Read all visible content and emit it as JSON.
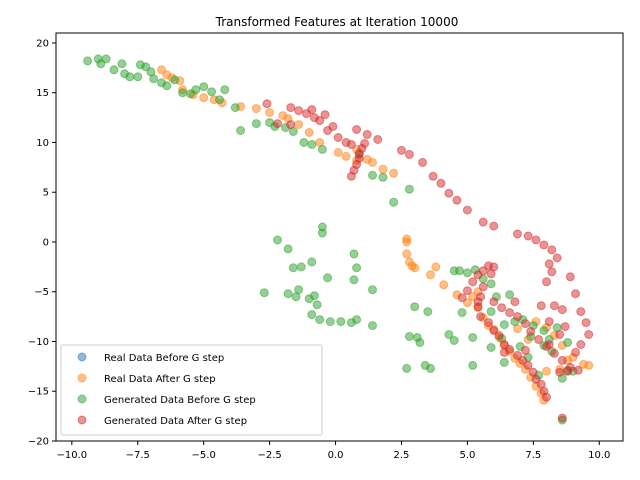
{
  "chart_data": {
    "type": "scatter",
    "title": "Transformed Features at Iteration 10000",
    "xlabel": "",
    "ylabel": "",
    "xlim": [
      -10.6,
      10.9
    ],
    "ylim": [
      -20,
      21
    ],
    "xticks": [
      -10.0,
      -7.5,
      -5.0,
      -2.5,
      0.0,
      2.5,
      5.0,
      7.5,
      10.0
    ],
    "xtick_labels": [
      "−10.0",
      "−7.5",
      "−5.0",
      "−2.5",
      "0.0",
      "2.5",
      "5.0",
      "7.5",
      "10.0"
    ],
    "yticks": [
      -20,
      -15,
      -10,
      -5,
      0,
      5,
      10,
      15,
      20
    ],
    "ytick_labels": [
      "−20",
      "−15",
      "−10",
      "−5",
      "0",
      "5",
      "10",
      "15",
      "20"
    ],
    "grid": false,
    "legend_position": "lower-left",
    "series": [
      {
        "name": "Real Data Before G step",
        "color": "#1f77b4",
        "points": []
      },
      {
        "name": "Real Data After G step",
        "color": "#ff7f0e",
        "points": [
          [
            -6.6,
            17.3
          ],
          [
            -6.4,
            16.8
          ],
          [
            -6.2,
            16.5
          ],
          [
            -5.9,
            16.2
          ],
          [
            -5.8,
            15.3
          ],
          [
            -5.4,
            14.8
          ],
          [
            -5.0,
            14.5
          ],
          [
            -4.6,
            14.3
          ],
          [
            -4.3,
            14.0
          ],
          [
            -3.6,
            13.6
          ],
          [
            -3.0,
            13.4
          ],
          [
            -2.5,
            13.0
          ],
          [
            -2.0,
            12.7
          ],
          [
            -1.8,
            12.4
          ],
          [
            -1.4,
            11.8
          ],
          [
            -1.0,
            11.0
          ],
          [
            -0.6,
            10.0
          ],
          [
            0.1,
            9.0
          ],
          [
            0.4,
            8.6
          ],
          [
            0.8,
            9.3
          ],
          [
            0.8,
            8.2
          ],
          [
            1.2,
            8.3
          ],
          [
            1.4,
            8.0
          ],
          [
            1.8,
            7.3
          ],
          [
            2.2,
            6.9
          ],
          [
            2.7,
            0.3
          ],
          [
            2.7,
            0.0
          ],
          [
            2.7,
            -1.2
          ],
          [
            2.8,
            -2.0
          ],
          [
            3.0,
            -2.6
          ],
          [
            3.6,
            -3.3
          ],
          [
            4.1,
            -4.3
          ],
          [
            4.6,
            -5.3
          ],
          [
            5.0,
            -6.1
          ],
          [
            5.4,
            -6.6
          ],
          [
            5.6,
            -7.6
          ],
          [
            5.8,
            -8.4
          ],
          [
            6.0,
            -8.8
          ],
          [
            6.2,
            -9.6
          ],
          [
            6.4,
            -10.4
          ],
          [
            6.6,
            -11.0
          ],
          [
            6.8,
            -11.7
          ],
          [
            7.0,
            -12.2
          ],
          [
            7.2,
            -12.8
          ],
          [
            7.4,
            -13.6
          ],
          [
            7.6,
            -14.5
          ],
          [
            7.8,
            -15.2
          ],
          [
            7.9,
            -15.9
          ],
          [
            7.6,
            -8.0
          ],
          [
            8.0,
            -8.6
          ],
          [
            8.3,
            -9.4
          ],
          [
            8.6,
            -10.4
          ],
          [
            9.0,
            -11.6
          ],
          [
            9.4,
            -12.3
          ],
          [
            9.6,
            -12.4
          ],
          [
            8.5,
            -12.8
          ],
          [
            8.0,
            -13.0
          ],
          [
            8.8,
            -11.9
          ],
          [
            7.3,
            -9.8
          ],
          [
            6.9,
            -8.7
          ],
          [
            5.2,
            -5.5
          ],
          [
            5.4,
            -5.0
          ],
          [
            3.8,
            -2.5
          ],
          [
            2.9,
            -2.4
          ]
        ]
      },
      {
        "name": "Generated Data Before G step",
        "color": "#2ca02c",
        "points": [
          [
            -9.4,
            18.2
          ],
          [
            -9.0,
            18.4
          ],
          [
            -8.9,
            17.9
          ],
          [
            -8.7,
            18.4
          ],
          [
            -8.4,
            17.3
          ],
          [
            -8.1,
            17.9
          ],
          [
            -8.0,
            16.9
          ],
          [
            -7.8,
            16.6
          ],
          [
            -7.5,
            16.6
          ],
          [
            -7.4,
            17.8
          ],
          [
            -7.2,
            17.6
          ],
          [
            -7.0,
            17.1
          ],
          [
            -6.9,
            16.4
          ],
          [
            -6.6,
            16.0
          ],
          [
            -6.4,
            15.7
          ],
          [
            -6.1,
            16.3
          ],
          [
            -5.8,
            15.0
          ],
          [
            -5.5,
            14.9
          ],
          [
            -5.3,
            15.3
          ],
          [
            -5.0,
            15.6
          ],
          [
            -4.7,
            15.1
          ],
          [
            -4.4,
            14.3
          ],
          [
            -4.2,
            15.3
          ],
          [
            -3.8,
            13.5
          ],
          [
            -3.6,
            11.2
          ],
          [
            -3.0,
            11.9
          ],
          [
            -2.5,
            12.0
          ],
          [
            -2.3,
            11.6
          ],
          [
            -1.9,
            11.5
          ],
          [
            -1.6,
            11.1
          ],
          [
            -1.2,
            10.0
          ],
          [
            -0.9,
            9.8
          ],
          [
            -0.5,
            9.3
          ],
          [
            0.9,
            8.8
          ],
          [
            1.4,
            6.7
          ],
          [
            1.8,
            6.5
          ],
          [
            2.2,
            4.0
          ],
          [
            2.8,
            5.3
          ],
          [
            -2.2,
            0.2
          ],
          [
            -1.8,
            -0.7
          ],
          [
            -1.6,
            -2.6
          ],
          [
            -1.3,
            -2.5
          ],
          [
            -0.9,
            -2.0
          ],
          [
            -0.5,
            1.5
          ],
          [
            -0.5,
            0.9
          ],
          [
            -0.3,
            -3.6
          ],
          [
            0.7,
            -1.2
          ],
          [
            0.8,
            -2.6
          ],
          [
            0.7,
            -3.8
          ],
          [
            -2.7,
            -5.1
          ],
          [
            -1.8,
            -5.2
          ],
          [
            -1.5,
            -5.5
          ],
          [
            -1.4,
            -4.8
          ],
          [
            -1.0,
            -5.7
          ],
          [
            -0.8,
            -5.4
          ],
          [
            -0.7,
            -6.3
          ],
          [
            -0.9,
            -7.3
          ],
          [
            -0.6,
            -7.8
          ],
          [
            -0.2,
            -8.0
          ],
          [
            0.2,
            -8.0
          ],
          [
            0.6,
            -8.1
          ],
          [
            0.8,
            -7.8
          ],
          [
            1.4,
            -8.4
          ],
          [
            1.4,
            -4.8
          ],
          [
            3.0,
            -6.5
          ],
          [
            3.5,
            -7.0
          ],
          [
            2.8,
            -9.5
          ],
          [
            3.1,
            -9.6
          ],
          [
            3.2,
            -10.1
          ],
          [
            3.4,
            -12.4
          ],
          [
            2.7,
            -12.7
          ],
          [
            3.6,
            -12.7
          ],
          [
            4.3,
            -9.3
          ],
          [
            4.5,
            -9.9
          ],
          [
            4.8,
            -7.1
          ],
          [
            5.2,
            -9.6
          ],
          [
            5.2,
            -12.4
          ],
          [
            4.7,
            -2.9
          ],
          [
            5.0,
            -3.1
          ],
          [
            4.5,
            -2.9
          ],
          [
            5.3,
            -2.8
          ],
          [
            5.6,
            -3.7
          ],
          [
            5.9,
            -4.2
          ],
          [
            6.1,
            -5.5
          ],
          [
            6.6,
            -5.3
          ],
          [
            5.9,
            -7.0
          ],
          [
            6.4,
            -8.3
          ],
          [
            6.8,
            -8.0
          ],
          [
            7.1,
            -7.8
          ],
          [
            7.5,
            -8.4
          ],
          [
            7.9,
            -8.9
          ],
          [
            8.1,
            -9.8
          ],
          [
            8.4,
            -8.6
          ],
          [
            8.8,
            -10.1
          ],
          [
            7.4,
            -9.5
          ],
          [
            7.9,
            -10.4
          ],
          [
            8.2,
            -11.0
          ],
          [
            7.3,
            -11.6
          ],
          [
            8.6,
            -13.7
          ],
          [
            7.7,
            -13.4
          ],
          [
            8.6,
            -17.9
          ],
          [
            8.8,
            -12.9
          ],
          [
            9.0,
            -13.0
          ],
          [
            7.0,
            -10.5
          ],
          [
            6.3,
            -9.7
          ],
          [
            5.9,
            -10.6
          ],
          [
            6.4,
            -12.1
          ]
        ]
      },
      {
        "name": "Generated Data After G step",
        "color": "#d62728",
        "points": [
          [
            -2.6,
            13.9
          ],
          [
            -1.7,
            13.5
          ],
          [
            -1.4,
            13.2
          ],
          [
            -1.1,
            12.9
          ],
          [
            -0.9,
            13.3
          ],
          [
            -0.8,
            12.5
          ],
          [
            -0.6,
            12.2
          ],
          [
            -0.4,
            12.8
          ],
          [
            -1.7,
            11.8
          ],
          [
            -2.2,
            11.9
          ],
          [
            -0.1,
            11.6
          ],
          [
            -0.3,
            11.2
          ],
          [
            0.1,
            10.5
          ],
          [
            0.4,
            10.0
          ],
          [
            0.6,
            9.8
          ],
          [
            0.8,
            11.3
          ],
          [
            1.2,
            10.8
          ],
          [
            1.6,
            10.3
          ],
          [
            0.6,
            6.6
          ],
          [
            0.7,
            7.2
          ],
          [
            0.8,
            7.8
          ],
          [
            0.9,
            8.4
          ],
          [
            1.0,
            9.4
          ],
          [
            1.1,
            9.9
          ],
          [
            0.9,
            8.9
          ],
          [
            2.5,
            9.2
          ],
          [
            2.8,
            8.8
          ],
          [
            3.3,
            8.0
          ],
          [
            3.7,
            6.6
          ],
          [
            4.0,
            5.9
          ],
          [
            4.3,
            4.9
          ],
          [
            4.6,
            4.2
          ],
          [
            5.0,
            3.2
          ],
          [
            5.6,
            2.0
          ],
          [
            6.0,
            1.6
          ],
          [
            6.9,
            0.8
          ],
          [
            7.3,
            0.6
          ],
          [
            7.6,
            0.2
          ],
          [
            7.9,
            -0.3
          ],
          [
            8.2,
            -0.8
          ],
          [
            8.4,
            -1.6
          ],
          [
            8.1,
            -2.2
          ],
          [
            8.2,
            -3.0
          ],
          [
            8.0,
            -4.0
          ],
          [
            8.9,
            -3.5
          ],
          [
            9.1,
            -5.2
          ],
          [
            8.6,
            -6.8
          ],
          [
            9.3,
            -7.0
          ],
          [
            9.5,
            -8.1
          ],
          [
            9.6,
            -9.3
          ],
          [
            9.3,
            -10.3
          ],
          [
            9.1,
            -11.1
          ],
          [
            4.8,
            -5.6
          ],
          [
            5.0,
            -4.9
          ],
          [
            5.2,
            -4.0
          ],
          [
            5.4,
            -3.3
          ],
          [
            5.6,
            -2.9
          ],
          [
            5.8,
            -2.4
          ],
          [
            6.0,
            -2.5
          ],
          [
            5.9,
            -3.2
          ],
          [
            5.6,
            -4.5
          ],
          [
            5.5,
            -5.5
          ],
          [
            5.4,
            -6.5
          ],
          [
            5.5,
            -7.5
          ],
          [
            5.8,
            -8.1
          ],
          [
            6.0,
            -8.9
          ],
          [
            6.2,
            -9.4
          ],
          [
            6.4,
            -10.3
          ],
          [
            6.6,
            -10.8
          ],
          [
            6.9,
            -11.4
          ],
          [
            7.1,
            -11.9
          ],
          [
            7.3,
            -12.4
          ],
          [
            7.5,
            -13.1
          ],
          [
            7.6,
            -13.8
          ],
          [
            7.8,
            -14.3
          ],
          [
            7.9,
            -15.0
          ],
          [
            8.0,
            -15.6
          ],
          [
            6.0,
            -6.0
          ],
          [
            6.3,
            -6.6
          ],
          [
            6.6,
            -7.1
          ],
          [
            6.9,
            -7.5
          ],
          [
            7.2,
            -8.2
          ],
          [
            7.4,
            -9.0
          ],
          [
            7.7,
            -9.8
          ],
          [
            8.0,
            -10.5
          ],
          [
            8.3,
            -11.2
          ],
          [
            8.6,
            -11.9
          ],
          [
            8.9,
            -12.6
          ],
          [
            9.2,
            -12.9
          ],
          [
            8.5,
            -13.1
          ],
          [
            8.8,
            -13.0
          ],
          [
            8.1,
            -8.0
          ],
          [
            7.8,
            -6.4
          ],
          [
            8.3,
            -6.4
          ],
          [
            8.7,
            -8.5
          ],
          [
            8.5,
            -9.3
          ],
          [
            8.1,
            -10.3
          ],
          [
            7.2,
            -10.9
          ],
          [
            6.4,
            -11.1
          ],
          [
            8.6,
            -17.7
          ],
          [
            5.4,
            -6.0
          ],
          [
            6.8,
            -6.0
          ]
        ]
      }
    ]
  }
}
